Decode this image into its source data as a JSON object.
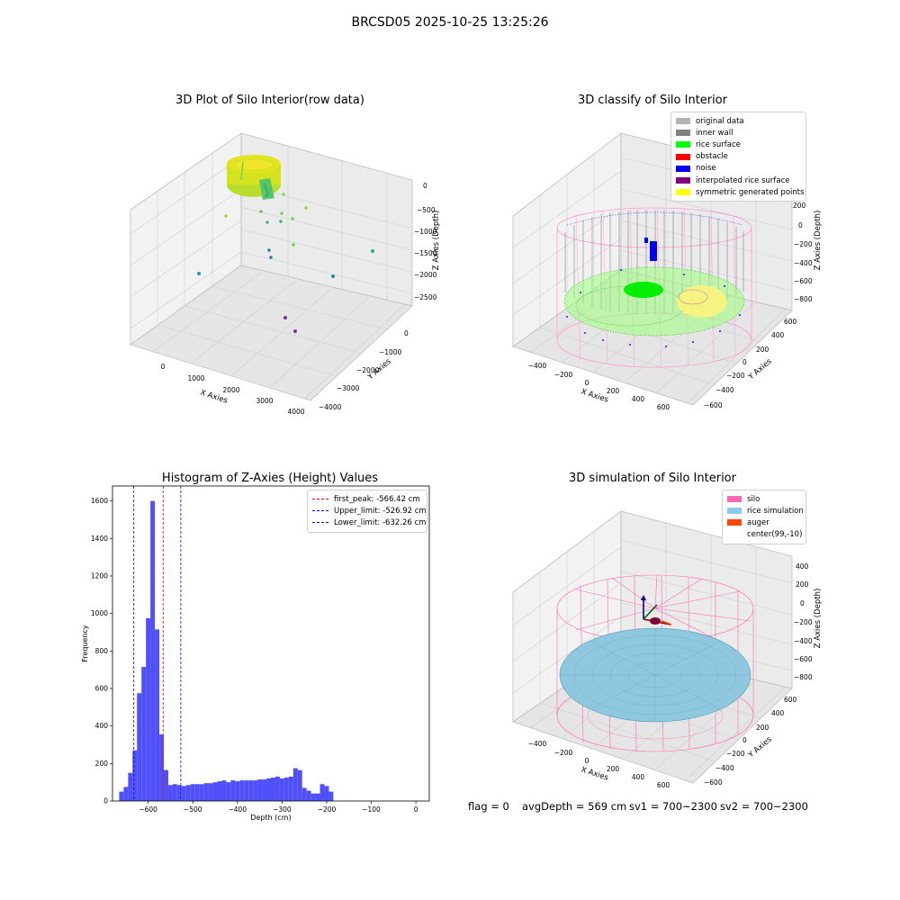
{
  "suptitle": "BRCSD05 2025-10-25 13:25:26",
  "panels": {
    "raw": {
      "title": "3D Plot of Silo Interior(row data)",
      "xlabel": "X Axies",
      "ylabel": "Y Axies",
      "zlabel": "Z Axies (Depth)",
      "xticks": [
        "0",
        "1000",
        "2000",
        "3000",
        "4000"
      ],
      "yticks": [
        "0",
        "−1000",
        "−2000",
        "−3000",
        "−4000"
      ],
      "zticks": [
        "0",
        "−500",
        "−1000",
        "−1500",
        "−2000",
        "−2500"
      ]
    },
    "classify": {
      "title": "3D classify of Silo Interior",
      "xlabel": "X Axies",
      "ylabel": "Y Axies",
      "zlabel": "Z Axies (Depth)",
      "xticks": [
        "−400",
        "−200",
        "0",
        "200",
        "400",
        "600"
      ],
      "yticks": [
        "600",
        "400",
        "200",
        "0",
        "−200",
        "−400",
        "−600"
      ],
      "zticks": [
        "200",
        "0",
        "−200",
        "−400",
        "−600",
        "−800"
      ],
      "legend": [
        {
          "label": "original data",
          "color": "#b3b3b3"
        },
        {
          "label": "inner wall",
          "color": "#808080"
        },
        {
          "label": "rice surface",
          "color": "#00ff00"
        },
        {
          "label": "obstacle",
          "color": "#ff0000"
        },
        {
          "label": "noise",
          "color": "#0000ff"
        },
        {
          "label": "interpolated rice surface",
          "color": "#800080"
        },
        {
          "label": "symmetric generated points",
          "color": "#ffff00"
        }
      ]
    },
    "simulation": {
      "title": "3D simulation of Silo Interior",
      "xlabel": "X Axies",
      "ylabel": "Y Axies",
      "zlabel": "Z Axies (Depth)",
      "xticks": [
        "−400",
        "−200",
        "0",
        "200",
        "400",
        "600"
      ],
      "yticks": [
        "600",
        "400",
        "200",
        "0",
        "−200",
        "−400",
        "−600"
      ],
      "zticks": [
        "400",
        "200",
        "0",
        "−200",
        "−400",
        "−600",
        "−800"
      ],
      "legend": [
        {
          "label": "silo",
          "color": "#ff69b4"
        },
        {
          "label": "rice simulation",
          "color": "#87ceeb"
        },
        {
          "label": "auger",
          "color": "#ff4500"
        },
        {
          "label": "center(99,-10)",
          "color": ""
        }
      ]
    }
  },
  "chart_data": {
    "type": "bar",
    "title": "Histogram of Z-Axies (Height) Values",
    "xlabel": "Depth (cm)",
    "ylabel": "Frequency",
    "xlim": [
      -680,
      30
    ],
    "ylim": [
      0,
      1680
    ],
    "xticks": [
      -600,
      -500,
      -400,
      -300,
      -200,
      -100,
      0
    ],
    "yticks": [
      0,
      200,
      400,
      600,
      800,
      1000,
      1200,
      1400,
      1600
    ],
    "bin_start": -665,
    "bin_width": 10,
    "values": [
      50,
      75,
      150,
      270,
      575,
      715,
      975,
      1600,
      915,
      355,
      165,
      85,
      90,
      85,
      80,
      85,
      90,
      90,
      90,
      95,
      95,
      100,
      105,
      110,
      100,
      110,
      105,
      110,
      110,
      110,
      110,
      115,
      115,
      120,
      125,
      130,
      120,
      125,
      130,
      175,
      165,
      70,
      55,
      40,
      40,
      90,
      80,
      50
    ],
    "bar_color": "#5050fa",
    "lines": [
      {
        "label": "first_peak: -566.42 cm",
        "x": -566.42,
        "color": "#ff0000"
      },
      {
        "label": "Upper_limit: -526.92 cm",
        "x": -526.92,
        "color": "#0000ff"
      },
      {
        "label": "Lower_limit: -632.26 cm",
        "x": -632.26,
        "color": "#0000ff"
      }
    ],
    "legend_position": "upper right"
  },
  "footer": {
    "flag": "flag = 0",
    "avg": "avgDepth = 569 cm",
    "sv1": "sv1 = 700~2300",
    "sv2": "sv2 = 700~2300"
  }
}
